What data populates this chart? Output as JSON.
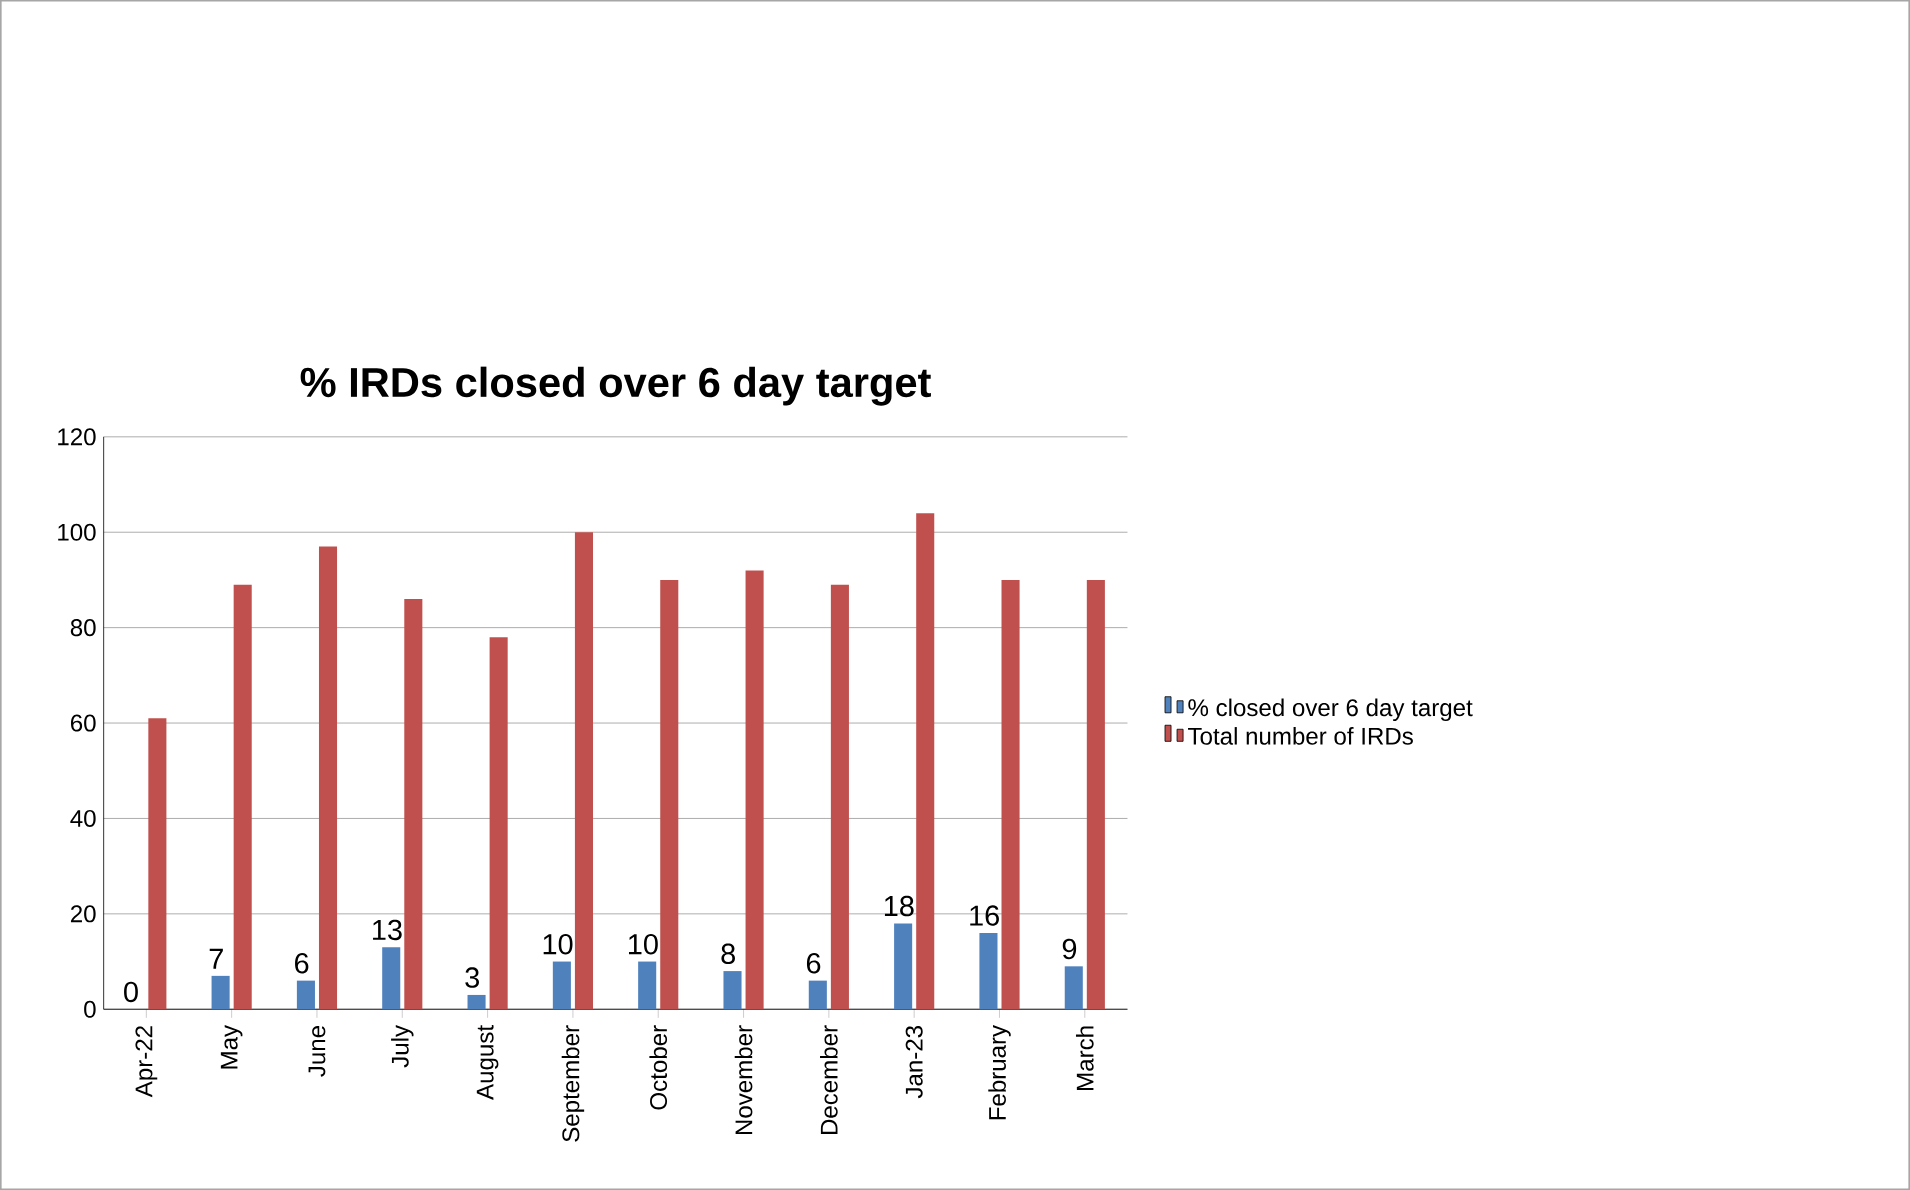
{
  "chart_data": {
    "type": "bar",
    "title": "% IRDs closed over 6 day target",
    "categories": [
      "Apr-22",
      "May",
      "June",
      "July",
      "August",
      "September",
      "October",
      "November",
      "December",
      "Jan-23",
      "February",
      "March"
    ],
    "series": [
      {
        "name": "% closed over 6 day target",
        "color": "#4f81bd",
        "values": [
          0,
          7,
          6,
          13,
          3,
          10,
          10,
          8,
          6,
          18,
          16,
          9
        ],
        "value_labels": [
          "0",
          "7",
          "6",
          "13",
          "3",
          "10",
          "10",
          "8",
          "6",
          "18",
          "16",
          "9"
        ]
      },
      {
        "name": "Total number of IRDs",
        "color": "#c0504d",
        "values": [
          61,
          89,
          97,
          86,
          78,
          100,
          90,
          92,
          89,
          104,
          90,
          90
        ]
      }
    ],
    "ylim": [
      0,
      120
    ],
    "yticks": [
      0,
      20,
      40,
      60,
      80,
      100,
      120
    ],
    "grid": "y",
    "legend": "right"
  }
}
